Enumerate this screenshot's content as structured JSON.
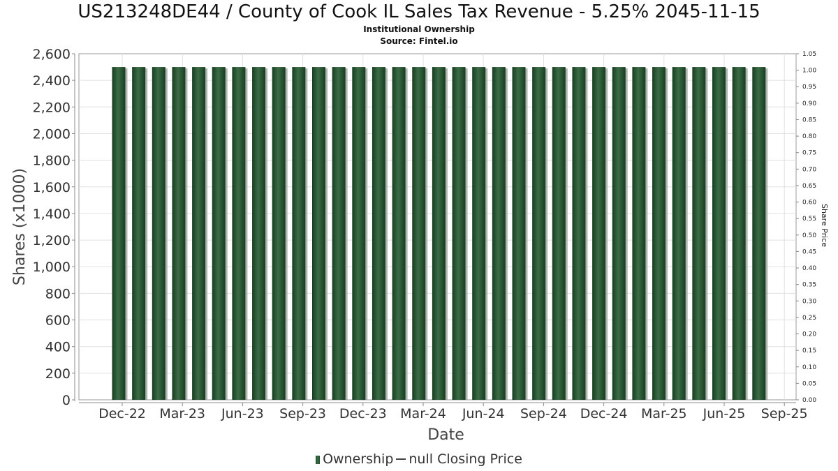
{
  "header": {
    "title": "US213248DE44 / County of Cook IL Sales Tax Revenue - 5.25% 2045-11-15",
    "subtitle1": "Institutional Ownership",
    "subtitle2": "Source: Fintel.io"
  },
  "legend": {
    "ownership_label": "Ownership",
    "price_label": "null Closing Price"
  },
  "colors": {
    "bar": "#2a5a36",
    "bar_dark": "#173d20",
    "grid": "#e0e0e0"
  },
  "chart_data": {
    "type": "bar",
    "xlabel": "Date",
    "ylabel": "Shares (x1000)",
    "y2label": "Share Price",
    "ylim": [
      0,
      2600
    ],
    "y2lim": [
      0,
      1.05
    ],
    "yticks": [
      "0",
      "200",
      "400",
      "600",
      "800",
      "1,000",
      "1,200",
      "1,400",
      "1,600",
      "1,800",
      "2,000",
      "2,200",
      "2,400",
      "2,600"
    ],
    "y2ticks": [
      "0.00",
      "0.05",
      "0.10",
      "0.15",
      "0.20",
      "0.25",
      "0.30",
      "0.35",
      "0.40",
      "0.45",
      "0.50",
      "0.55",
      "0.60",
      "0.65",
      "0.70",
      "0.75",
      "0.80",
      "0.85",
      "0.90",
      "0.95",
      "1.00",
      "1.05"
    ],
    "xticks": [
      "Dec-22",
      "Mar-23",
      "Jun-23",
      "Sep-23",
      "Dec-23",
      "Mar-24",
      "Jun-24",
      "Sep-24",
      "Dec-24",
      "Mar-25",
      "Jun-25",
      "Sep-25"
    ],
    "grid": true,
    "legend_position": "bottom",
    "series": [
      {
        "name": "Ownership",
        "values": [
          2500,
          2500,
          2500,
          2500,
          2500,
          2500,
          2500,
          2500,
          2500,
          2500,
          2500,
          2500,
          2500,
          2500,
          2500,
          2500,
          2500,
          2500,
          2500,
          2500,
          2500,
          2500,
          2500,
          2500,
          2500,
          2500,
          2500,
          2500,
          2500,
          2500,
          2500,
          2500,
          2500
        ]
      }
    ]
  }
}
